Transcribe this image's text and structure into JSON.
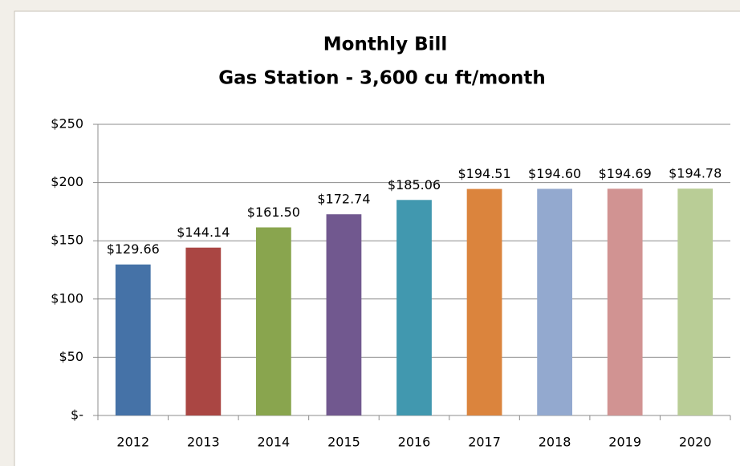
{
  "chart_data": {
    "type": "bar",
    "title": "Monthly Bill",
    "subtitle": "Gas Station - 3,600 cu ft/month",
    "categories": [
      "2012",
      "2013",
      "2014",
      "2015",
      "2016",
      "2017",
      "2018",
      "2019",
      "2020"
    ],
    "values": [
      129.66,
      144.14,
      161.5,
      172.74,
      185.06,
      194.51,
      194.6,
      194.69,
      194.78
    ],
    "value_labels": [
      "$129.66",
      "$144.14",
      "$161.50",
      "$172.74",
      "$185.06",
      "$194.51",
      "$194.60",
      "$194.69",
      "$194.78"
    ],
    "colors": [
      "#4572a7",
      "#aa4643",
      "#89a54e",
      "#71588f",
      "#4198af",
      "#db843d",
      "#93a9cf",
      "#d19392",
      "#b9cd96"
    ],
    "ylim": [
      0,
      250
    ],
    "yticks": [
      {
        "value": 0,
        "label": "$-"
      },
      {
        "value": 50,
        "label": "$50"
      },
      {
        "value": 100,
        "label": "$100"
      },
      {
        "value": 150,
        "label": "$150"
      },
      {
        "value": 200,
        "label": "$200"
      },
      {
        "value": 250,
        "label": "$250"
      }
    ],
    "grid": true
  }
}
